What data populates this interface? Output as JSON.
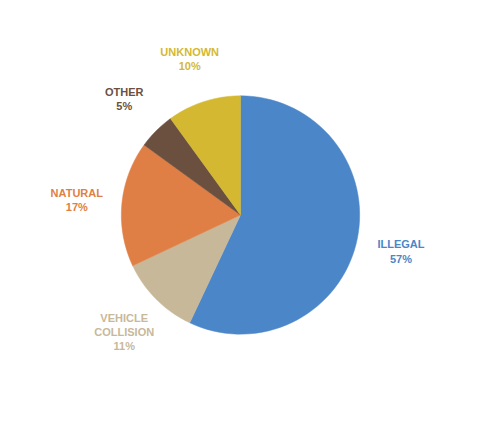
{
  "chart_data": {
    "type": "pie",
    "categories": [
      "ILLEGAL",
      "VEHICLE\nCOLLISION",
      "NATURAL",
      "OTHER",
      "UNKNOWN"
    ],
    "values": [
      57,
      11,
      17,
      5,
      10
    ],
    "value_labels": [
      "57%",
      "11%",
      "17%",
      "5%",
      "10%"
    ],
    "colors": [
      "#4a86c8",
      "#c8b89a",
      "#e07f45",
      "#6b5040",
      "#d4b832"
    ],
    "data_labels": true
  }
}
